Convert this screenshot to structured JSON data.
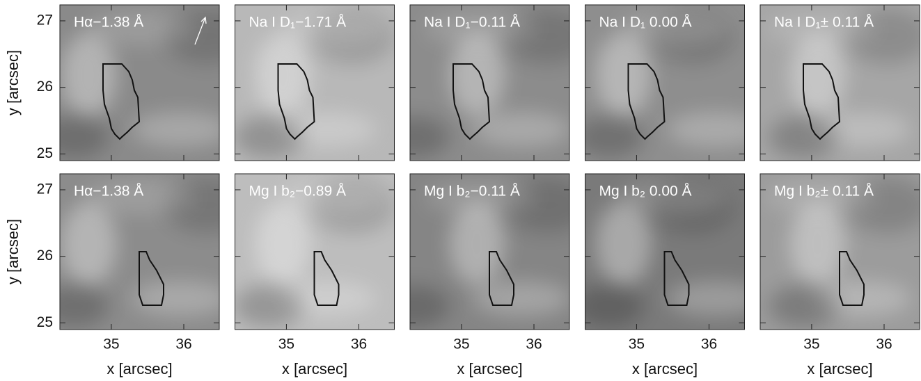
{
  "chart_data": [
    {
      "type": "image",
      "title": "Hα−1.38 Å",
      "background": "#8a8a8a",
      "xlim": [
        34.29,
        36.49
      ],
      "ylim": [
        24.9,
        27.24
      ],
      "xticks": [
        35,
        36
      ],
      "yticks": [
        25,
        26,
        27
      ],
      "xtick_labels": false,
      "ytick_labels": true,
      "ylabel": "y  [arcsec]"
    },
    {
      "type": "image",
      "title": "Na I D₁−1.71 Å",
      "background": "#b8b8b8",
      "xlim": [
        34.29,
        36.49
      ],
      "ylim": [
        24.9,
        27.24
      ],
      "xticks": [
        35,
        36
      ],
      "yticks": [
        25,
        26,
        27
      ],
      "xtick_labels": false,
      "ytick_labels": false
    },
    {
      "type": "image",
      "title": "Na I D₁−0.11 Å",
      "background": "#8c8c8c",
      "xlim": [
        34.29,
        36.49
      ],
      "ylim": [
        24.9,
        27.24
      ],
      "xticks": [
        35,
        36
      ],
      "yticks": [
        25,
        26,
        27
      ],
      "xtick_labels": false,
      "ytick_labels": false
    },
    {
      "type": "image",
      "title": "Na I D₁ 0.00 Å",
      "background": "#8e8e8e",
      "xlim": [
        34.29,
        36.49
      ],
      "ylim": [
        24.9,
        27.24
      ],
      "xticks": [
        35,
        36
      ],
      "yticks": [
        25,
        26,
        27
      ],
      "xtick_labels": false,
      "ytick_labels": false
    },
    {
      "type": "image",
      "title": "Na I D₁± 0.11 Å",
      "background": "#a6a6a6",
      "xlim": [
        34.29,
        36.49
      ],
      "ylim": [
        24.9,
        27.24
      ],
      "xticks": [
        35,
        36
      ],
      "yticks": [
        25,
        26,
        27
      ],
      "xtick_labels": false,
      "ytick_labels": false
    },
    {
      "type": "image",
      "title": "Hα−1.38 Å",
      "background": "#8c8c8c",
      "xlim": [
        34.29,
        36.49
      ],
      "ylim": [
        24.9,
        27.24
      ],
      "xticks": [
        35,
        36
      ],
      "yticks": [
        25,
        26,
        27
      ],
      "xtick_labels": true,
      "ytick_labels": true,
      "xlabel": "x  [arcsec]",
      "ylabel": "y  [arcsec]"
    },
    {
      "type": "image",
      "title": "Mg I b₂−0.89 Å",
      "background": "#bdbdbd",
      "xlim": [
        34.29,
        36.49
      ],
      "ylim": [
        24.9,
        27.24
      ],
      "xticks": [
        35,
        36
      ],
      "yticks": [
        25,
        26,
        27
      ],
      "xtick_labels": true,
      "ytick_labels": false,
      "xlabel": "x  [arcsec]"
    },
    {
      "type": "image",
      "title": "Mg I b₂−0.11 Å",
      "background": "#858585",
      "xlim": [
        34.29,
        36.49
      ],
      "ylim": [
        24.9,
        27.24
      ],
      "xticks": [
        35,
        36
      ],
      "yticks": [
        25,
        26,
        27
      ],
      "xtick_labels": true,
      "ytick_labels": false,
      "xlabel": "x  [arcsec]"
    },
    {
      "type": "image",
      "title": "Mg I b₂ 0.00 Å",
      "background": "#7a7a7a",
      "xlim": [
        34.29,
        36.49
      ],
      "ylim": [
        24.9,
        27.24
      ],
      "xticks": [
        35,
        36
      ],
      "yticks": [
        25,
        26,
        27
      ],
      "xtick_labels": true,
      "ytick_labels": false,
      "xlabel": "x  [arcsec]"
    },
    {
      "type": "image",
      "title": "Mg I b₂± 0.11 Å",
      "background": "#9c9c9c",
      "xlim": [
        34.29,
        36.49
      ],
      "ylim": [
        24.9,
        27.24
      ],
      "xticks": [
        35,
        36
      ],
      "yticks": [
        25,
        26,
        27
      ],
      "xtick_labels": true,
      "ytick_labels": false,
      "xlabel": "x  [arcsec]"
    }
  ]
}
